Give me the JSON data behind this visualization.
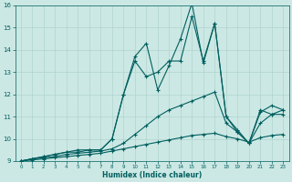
{
  "xlabel": "Humidex (Indice chaleur)",
  "xlim": [
    -0.5,
    23.5
  ],
  "ylim": [
    9,
    16
  ],
  "xticks": [
    0,
    1,
    2,
    3,
    4,
    5,
    6,
    7,
    8,
    9,
    10,
    11,
    12,
    13,
    14,
    15,
    16,
    17,
    18,
    19,
    20,
    21,
    22,
    23
  ],
  "yticks": [
    9,
    10,
    11,
    12,
    13,
    14,
    15,
    16
  ],
  "bg_color": "#cce8e4",
  "grid_color": "#b0d4ce",
  "line_color": "#005f5f",
  "line_width": 0.8,
  "marker": "+",
  "marker_size": 3.5,
  "series": [
    [
      9.0,
      9.1,
      9.2,
      9.3,
      9.4,
      9.5,
      9.5,
      9.5,
      10.0,
      12.0,
      13.7,
      14.3,
      12.2,
      13.3,
      14.5,
      16.1,
      13.4,
      15.2,
      11.0,
      10.3,
      9.8,
      11.2,
      11.5,
      11.3
    ],
    [
      9.0,
      9.1,
      9.2,
      9.3,
      9.4,
      9.4,
      9.5,
      9.5,
      10.0,
      12.0,
      13.5,
      12.8,
      13.0,
      13.5,
      13.5,
      15.5,
      13.5,
      15.2,
      11.0,
      10.4,
      9.8,
      11.3,
      11.1,
      11.1
    ],
    [
      9.0,
      9.1,
      9.15,
      9.2,
      9.3,
      9.35,
      9.4,
      9.45,
      9.55,
      9.8,
      10.2,
      10.6,
      11.0,
      11.3,
      11.5,
      11.7,
      11.9,
      12.1,
      10.7,
      10.3,
      9.8,
      10.7,
      11.1,
      11.3
    ],
    [
      9.0,
      9.05,
      9.1,
      9.15,
      9.2,
      9.25,
      9.3,
      9.35,
      9.45,
      9.55,
      9.65,
      9.75,
      9.85,
      9.95,
      10.05,
      10.15,
      10.2,
      10.25,
      10.1,
      10.0,
      9.85,
      10.05,
      10.15,
      10.2
    ]
  ]
}
